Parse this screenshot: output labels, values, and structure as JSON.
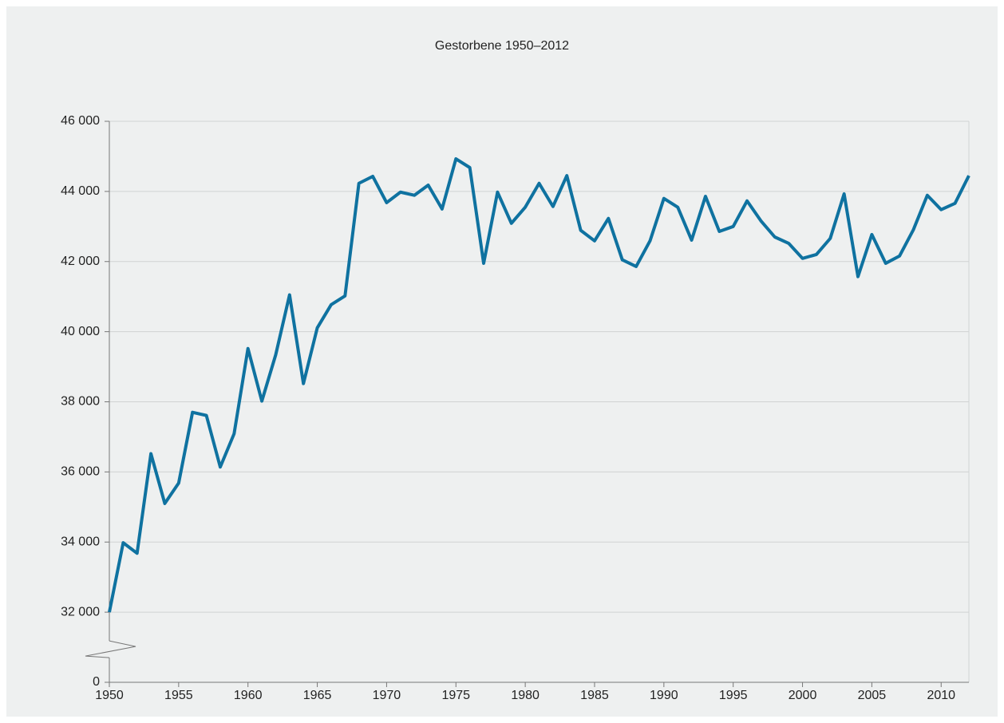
{
  "chart_data": {
    "type": "line",
    "title": "Gestorbene 1950–2012",
    "x": [
      1950,
      1951,
      1952,
      1953,
      1954,
      1955,
      1956,
      1957,
      1958,
      1959,
      1960,
      1961,
      1962,
      1963,
      1964,
      1965,
      1966,
      1967,
      1968,
      1969,
      1970,
      1971,
      1972,
      1973,
      1974,
      1975,
      1976,
      1977,
      1978,
      1979,
      1980,
      1981,
      1982,
      1983,
      1984,
      1985,
      1986,
      1987,
      1988,
      1989,
      1990,
      1991,
      1992,
      1993,
      1994,
      1995,
      1996,
      1997,
      1998,
      1999,
      2000,
      2001,
      2002,
      2003,
      2004,
      2005,
      2006,
      2007,
      2008,
      2009,
      2010,
      2011,
      2012
    ],
    "series": [
      {
        "color": "#0f72a0",
        "values": [
          32000,
          33980,
          33680,
          36520,
          35100,
          35680,
          37700,
          37610,
          36140,
          37090,
          39520,
          38020,
          39340,
          41050,
          38520,
          40110,
          40770,
          41020,
          44230,
          44430,
          43680,
          43980,
          43890,
          44180,
          43500,
          44930,
          44680,
          41950,
          43980,
          43090,
          43550,
          44230,
          43570,
          44450,
          42890,
          42590,
          43230,
          42050,
          41860,
          42590,
          43800,
          43550,
          42610,
          43860,
          42860,
          43000,
          43730,
          43160,
          42700,
          42520,
          42090,
          42200,
          42660,
          43930,
          41570,
          42770,
          41950,
          42160,
          42910,
          43890,
          43480,
          43660,
          44450
        ]
      }
    ],
    "xlim": [
      1950,
      2012
    ],
    "xticks": [
      1950,
      1955,
      1960,
      1965,
      1970,
      1975,
      1980,
      1985,
      1990,
      1995,
      2000,
      2005,
      2010
    ],
    "ylim": [
      0,
      46000
    ],
    "yticks": [
      {
        "value": 0,
        "label": "0"
      },
      {
        "value": 32000,
        "label": "32 000"
      },
      {
        "value": 34000,
        "label": "34 000"
      },
      {
        "value": 36000,
        "label": "36 000"
      },
      {
        "value": 38000,
        "label": "38 000"
      },
      {
        "value": 40000,
        "label": "40 000"
      },
      {
        "value": 42000,
        "label": "42 000"
      },
      {
        "value": 44000,
        "label": "44 000"
      },
      {
        "value": 46000,
        "label": "46 000"
      }
    ],
    "axis_break": true,
    "grid": true
  }
}
